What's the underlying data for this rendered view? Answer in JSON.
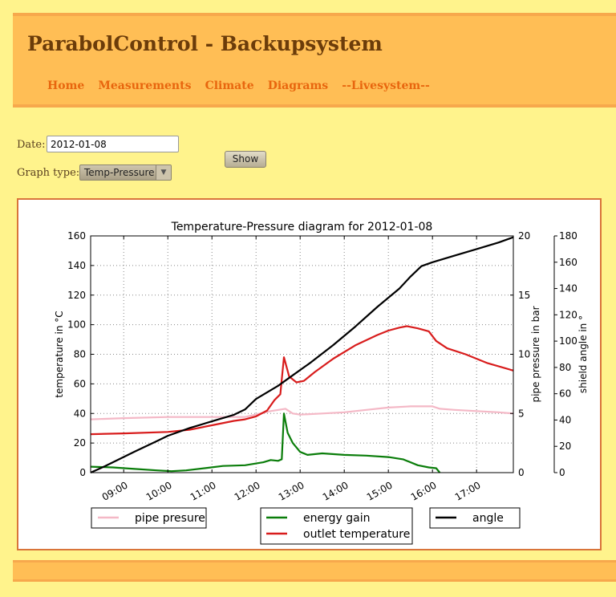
{
  "header": {
    "title": "ParabolControl - Backupsystem",
    "nav": [
      "Home",
      "Measurements",
      "Climate",
      "Diagrams",
      "--Livesystem--"
    ]
  },
  "form": {
    "date_label": "Date:",
    "date_value": "2012-01-08",
    "graph_type_label": "Graph type:",
    "graph_type_value": "Temp-Pressure",
    "show_label": "Show"
  },
  "colors": {
    "pipe_pressure": "#f4b8c6",
    "energy_gain": "#0a7d0a",
    "outlet_temperature": "#d81c1c",
    "angle": "#000000"
  },
  "chart_data": {
    "type": "line",
    "title": "Temperature-Pressure diagram for 2012-01-08",
    "ylabel_left": "temperature in °C",
    "ylabel_right1": "pipe pressure in bar",
    "ylabel_right2": "shield angle in °",
    "xlim": [
      "08:15",
      "17:50"
    ],
    "ylim_left": [
      0,
      160
    ],
    "ylim_right1": [
      0,
      20
    ],
    "ylim_right2": [
      0,
      180
    ],
    "x_ticks": [
      "09:00",
      "10:00",
      "11:00",
      "12:00",
      "13:00",
      "14:00",
      "15:00",
      "16:00",
      "17:00"
    ],
    "y_ticks_left": [
      "0",
      "20",
      "40",
      "60",
      "80",
      "100",
      "120",
      "140",
      "160"
    ],
    "y_ticks_right1": [
      "0",
      "5",
      "10",
      "15",
      "20"
    ],
    "y_ticks_right2": [
      "0",
      "20",
      "40",
      "60",
      "80",
      "100",
      "120",
      "140",
      "160",
      "180"
    ],
    "grid": true,
    "legend": [
      "pipe presure",
      "energy gain",
      "outlet temperature",
      "angle"
    ],
    "series": [
      {
        "name": "pipe presure",
        "axis": "right1",
        "x": [
          "08:15",
          "09:00",
          "10:00",
          "11:00",
          "11:45",
          "12:20",
          "12:40",
          "12:50",
          "13:00",
          "13:30",
          "14:00",
          "14:30",
          "15:00",
          "15:30",
          "16:00",
          "16:10",
          "16:30",
          "17:00",
          "17:30",
          "17:50"
        ],
        "y": [
          4.5,
          4.6,
          4.7,
          4.7,
          4.7,
          5.2,
          5.4,
          5.0,
          4.9,
          5.0,
          5.1,
          5.3,
          5.5,
          5.6,
          5.6,
          5.4,
          5.3,
          5.2,
          5.1,
          5.0
        ]
      },
      {
        "name": "energy gain",
        "axis": "left",
        "x": [
          "08:15",
          "08:45",
          "09:15",
          "09:45",
          "10:05",
          "10:25",
          "10:50",
          "11:15",
          "11:45",
          "12:10",
          "12:20",
          "12:30",
          "12:35",
          "12:38",
          "12:43",
          "12:50",
          "13:00",
          "13:10",
          "13:30",
          "14:00",
          "14:30",
          "15:00",
          "15:20",
          "15:40",
          "15:55",
          "16:05",
          "16:10"
        ],
        "y": [
          4,
          3.5,
          2.5,
          1.5,
          1,
          1.5,
          3,
          4.5,
          5,
          7,
          8.5,
          8,
          9,
          40,
          27,
          20,
          14,
          12,
          13,
          12,
          11.5,
          10.5,
          9,
          5,
          3.5,
          3,
          0
        ]
      },
      {
        "name": "outlet temperature",
        "axis": "left",
        "x": [
          "08:15",
          "09:00",
          "10:00",
          "10:30",
          "11:00",
          "11:30",
          "11:45",
          "12:00",
          "12:15",
          "12:25",
          "12:33",
          "12:38",
          "12:45",
          "12:55",
          "13:05",
          "13:20",
          "13:45",
          "14:15",
          "14:45",
          "15:00",
          "15:15",
          "15:25",
          "15:40",
          "15:55",
          "16:05",
          "16:20",
          "16:45",
          "17:15",
          "17:50"
        ],
        "y": [
          26,
          26.5,
          27.5,
          29,
          32,
          35,
          36,
          38,
          42,
          49,
          53,
          78,
          65,
          61,
          62,
          68,
          77,
          86,
          93,
          96,
          98,
          99,
          97.5,
          95.5,
          89,
          84,
          80,
          74,
          69
        ]
      },
      {
        "name": "angle",
        "axis": "right2",
        "x": [
          "08:15",
          "08:35",
          "09:15",
          "09:45",
          "10:00",
          "10:30",
          "11:00",
          "11:30",
          "11:45",
          "12:00",
          "12:30",
          "12:50",
          "13:15",
          "13:45",
          "14:15",
          "14:45",
          "15:15",
          "15:30",
          "15:45",
          "16:00",
          "16:30",
          "17:00",
          "17:30",
          "17:50"
        ],
        "y": [
          0,
          5,
          16,
          24,
          28,
          34,
          39,
          44,
          48,
          56,
          66,
          74,
          84,
          97,
          111,
          126,
          140,
          149,
          157,
          160,
          165,
          170,
          175,
          179
        ]
      }
    ]
  }
}
